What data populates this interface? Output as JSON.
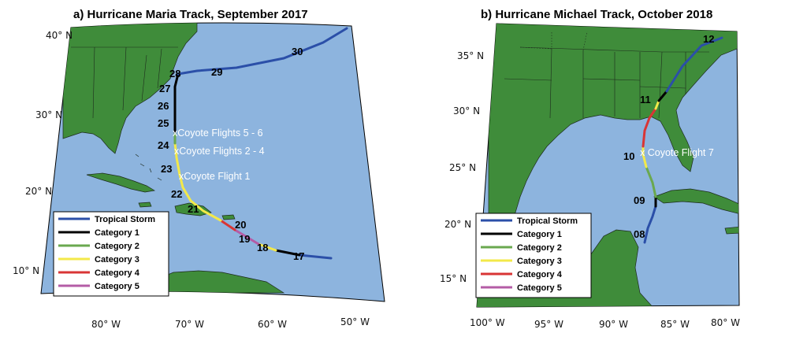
{
  "panel_a": {
    "title": "a) Hurricane Maria Track, September 2017",
    "lat_labels": [
      "40° N",
      "30° N",
      "20° N",
      "10° N"
    ],
    "lon_labels": [
      "80° W",
      "70° W",
      "60° W",
      "50° W"
    ],
    "day_labels": [
      "30",
      "29",
      "28",
      "27",
      "26",
      "25",
      "24",
      "23",
      "22",
      "21",
      "20",
      "19",
      "18",
      "17"
    ],
    "flight_labels": [
      "xCoyote Flights 5 - 6",
      "xCoyote Flights 2 - 4",
      "xCoyote Flight 1"
    ],
    "legend": [
      "Tropical Storm",
      "Category 1",
      "Category 2",
      "Category 3",
      "Category 4",
      "Category 5"
    ]
  },
  "panel_b": {
    "title": "b) Hurricane Michael Track, October 2018",
    "lat_labels": [
      "35° N",
      "30° N",
      "25° N",
      "20° N",
      "15° N"
    ],
    "lon_labels": [
      "100° W",
      "95° W",
      "90° W",
      "85° W",
      "80° W"
    ],
    "day_labels": [
      "12",
      "11",
      "10",
      "09",
      "08"
    ],
    "flight_labels": [
      "x Coyote Flight 7"
    ],
    "legend": [
      "Tropical Storm",
      "Category 1",
      "Category 2",
      "Category 3",
      "Category 4",
      "Category 5"
    ]
  },
  "colors": {
    "ocean": "#8db4de",
    "land": "#3f8c3a",
    "tropical_storm": "#2b4fa8",
    "category_1": "#000000",
    "category_2": "#6aa84f",
    "category_3": "#f3e94a",
    "category_4": "#d93535",
    "category_5": "#b45ca6"
  }
}
